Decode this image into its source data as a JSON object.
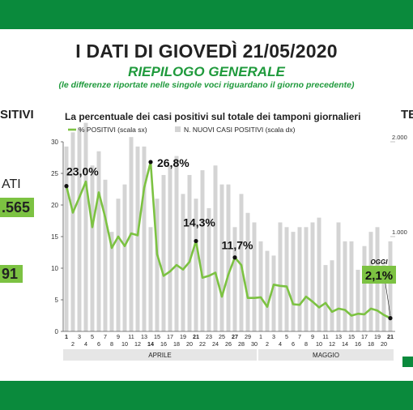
{
  "header": {
    "title": "I DATI DI GIOVEDÌ 21/05/2020",
    "subtitle": "RIEPILOGO GENERALE",
    "note": "(le differenze riportate nelle singole voci riguardano il giorno precedente)"
  },
  "left_fragments": {
    "positivi": "SITIVI",
    "ati": "ATI",
    "value1": ".565",
    "value2": "91"
  },
  "right_fragment": "TE",
  "colors": {
    "band": "#0a8a3c",
    "line": "#7cc242",
    "bar": "#d4d4d4",
    "subtitle": "#1f9a3c"
  },
  "icons": [
    "leaf-icon"
  ],
  "chart_data": {
    "type": "line",
    "title": "La percentuale dei casi positivi sul totale dei tamponi giornalieri",
    "legend": [
      {
        "label": "% POSITIVI (scala sx)",
        "color": "#7cc242"
      },
      {
        "label": "N. NUOVI CASI POSITIVI (scala dx)",
        "color": "#d4d4d4"
      }
    ],
    "y_left": {
      "ticks": [
        0,
        5,
        10,
        15,
        20,
        25,
        30
      ],
      "ylim": [
        0,
        30
      ]
    },
    "y_right": {
      "ticks": [
        "1.000",
        "2.000"
      ],
      "ylim": [
        0,
        2000
      ]
    },
    "x_tick_labels": [
      "1",
      "2",
      "3",
      "4",
      "5",
      "6",
      "7",
      "8",
      "9",
      "10",
      "11",
      "12",
      "13",
      "14",
      "15",
      "16",
      "17",
      "18",
      "19",
      "20",
      "21",
      "22",
      "23",
      "24",
      "25",
      "26",
      "27",
      "28",
      "29",
      "30",
      "1",
      "2",
      "3",
      "4",
      "5",
      "6",
      "7",
      "8",
      "9",
      "10",
      "11",
      "12",
      "13",
      "14",
      "15",
      "16",
      "17",
      "18",
      "19",
      "20",
      "21"
    ],
    "bold_ticks": [
      "1",
      "14",
      "21",
      "27",
      "21"
    ],
    "month_labels": [
      "APRILE",
      "MAGGIO"
    ],
    "series": [
      {
        "name": "% POSITIVI (scala sx)",
        "values": [
          23.0,
          18.8,
          21.2,
          23.7,
          16.5,
          22.0,
          18.0,
          13.2,
          15.0,
          13.5,
          15.5,
          15.2,
          22.7,
          26.8,
          12.2,
          8.8,
          9.5,
          10.5,
          9.8,
          11.0,
          14.3,
          8.5,
          8.8,
          9.3,
          5.5,
          9.0,
          11.7,
          10.5,
          5.3,
          5.3,
          5.4,
          3.9,
          7.4,
          7.2,
          7.1,
          4.3,
          4.2,
          5.5,
          4.7,
          3.8,
          4.5,
          3.1,
          3.6,
          3.4,
          2.5,
          2.8,
          2.7,
          3.6,
          3.3,
          2.6,
          2.1
        ]
      },
      {
        "name": "N. NUOVI CASI POSITIVI (scala dx)",
        "values": [
          1950,
          2100,
          2150,
          2200,
          1750,
          1900,
          1600,
          1050,
          1400,
          1550,
          2050,
          1950,
          1950,
          1100,
          1400,
          1650,
          1750,
          1850,
          1450,
          1650,
          1400,
          1700,
          1300,
          1750,
          1550,
          1550,
          1100,
          1450,
          1250,
          1150,
          950,
          850,
          800,
          1150,
          1100,
          1050,
          1100,
          1100,
          1150,
          1200,
          700,
          750,
          1150,
          950,
          950,
          650,
          900,
          1050,
          1100,
          700,
          950
        ]
      }
    ],
    "annotations": [
      {
        "text": "23,0%",
        "x_index": 0
      },
      {
        "text": "26,8%",
        "x_index": 13
      },
      {
        "text": "14,3%",
        "x_index": 20
      },
      {
        "text": "11,7%",
        "x_index": 26
      },
      {
        "text": "OGGI",
        "x_index": 50
      },
      {
        "text": "2,1%",
        "x_index": 50
      }
    ]
  }
}
